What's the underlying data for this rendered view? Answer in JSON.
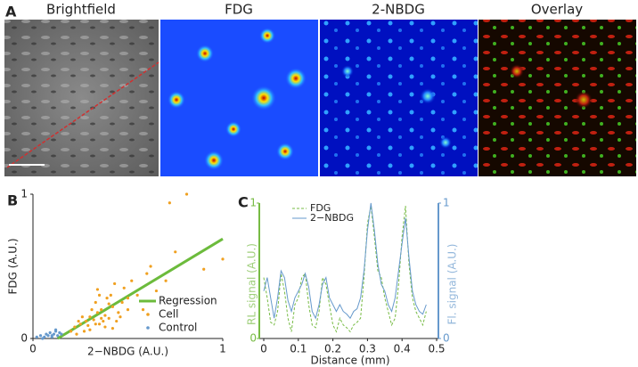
{
  "images": {
    "panel": "A",
    "titles": [
      "Brightfield",
      "FDG",
      "2-NBDG",
      "Overlay"
    ]
  },
  "chart_data": [
    {
      "type": "scatter",
      "panel": "B",
      "x_label": "2−NBDG (A.U.)",
      "y_label": "FDG (A.U.)",
      "xlim": [
        0,
        1
      ],
      "xticks": [
        0,
        1
      ],
      "ylim": [
        0,
        1
      ],
      "yticks": [
        0,
        1
      ],
      "legend": "lower right",
      "series": [
        {
          "name": "Regression",
          "color": "#6cbb3c",
          "marker": "line",
          "x": [
            0.13,
            1
          ],
          "values": [
            0,
            0.69
          ]
        },
        {
          "name": "Cell",
          "color": "#f0a020",
          "marker": "dot",
          "x": [
            0.22,
            0.25,
            0.28,
            0.3,
            0.32,
            0.34,
            0.35,
            0.36,
            0.38,
            0.4,
            0.42,
            0.45,
            0.27,
            0.29,
            0.31,
            0.33,
            0.37,
            0.39,
            0.41,
            0.44,
            0.48,
            0.5,
            0.26,
            0.3,
            0.35,
            0.38,
            0.43,
            0.47,
            0.52,
            0.55,
            0.6,
            0.24,
            0.33,
            0.36,
            0.4,
            0.46,
            0.5,
            0.58,
            0.62,
            0.65,
            0.7,
            0.81,
            0.72,
            0.75,
            0.9,
            1.0,
            0.2,
            0.23,
            0.34,
            0.42
          ],
          "values": [
            0.08,
            0.1,
            0.12,
            0.15,
            0.13,
            0.18,
            0.1,
            0.2,
            0.16,
            0.14,
            0.22,
            0.18,
            0.05,
            0.09,
            0.2,
            0.25,
            0.12,
            0.28,
            0.3,
            0.12,
            0.35,
            0.2,
            0.15,
            0.06,
            0.3,
            0.08,
            0.38,
            0.25,
            0.4,
            0.3,
            0.45,
            0.12,
            0.1,
            0.14,
            0.24,
            0.15,
            0.28,
            0.2,
            0.5,
            0.33,
            0.4,
            1.0,
            0.94,
            0.6,
            0.48,
            0.55,
            0.05,
            0.03,
            0.34,
            0.07
          ]
        },
        {
          "name": "Control",
          "color": "#6699cc",
          "marker": "dot",
          "x": [
            0.02,
            0.04,
            0.06,
            0.07,
            0.08,
            0.09,
            0.1,
            0.11,
            0.12,
            0.13,
            0.14,
            0.15,
            0.05,
            0.1,
            0.12
          ],
          "values": [
            0.01,
            0.02,
            0.01,
            0.03,
            0.02,
            0.04,
            0.02,
            0.03,
            0.05,
            0.02,
            0.04,
            0.03,
            0.0,
            0.01,
            0.06
          ]
        }
      ]
    },
    {
      "type": "line",
      "panel": "C",
      "x_label": "Distance (mm)",
      "y_label": "RL signal (A.U.)",
      "y2_label": "Fl. signal (A.U.)",
      "xlim": [
        0,
        0.5
      ],
      "xticks": [
        0,
        0.1,
        0.2,
        0.3,
        0.4,
        0.5
      ],
      "ylim": [
        0,
        1
      ],
      "yticks": [
        0,
        1
      ],
      "y2lim": [
        0,
        1
      ],
      "y2ticks": [
        0,
        1
      ],
      "legend": "upper center",
      "x": [
        0,
        0.01,
        0.02,
        0.03,
        0.04,
        0.05,
        0.06,
        0.07,
        0.08,
        0.09,
        0.1,
        0.11,
        0.12,
        0.13,
        0.14,
        0.15,
        0.16,
        0.17,
        0.18,
        0.19,
        0.2,
        0.21,
        0.22,
        0.23,
        0.24,
        0.25,
        0.26,
        0.27,
        0.28,
        0.29,
        0.3,
        0.31,
        0.32,
        0.33,
        0.34,
        0.35,
        0.36,
        0.37,
        0.38,
        0.39,
        0.4,
        0.41,
        0.42,
        0.43,
        0.44,
        0.45,
        0.46,
        0.47
      ],
      "series": [
        {
          "name": "FDG",
          "color": "#77bb44",
          "dashed": true,
          "values": [
            0.45,
            0.3,
            0.12,
            0.1,
            0.2,
            0.48,
            0.35,
            0.15,
            0.05,
            0.25,
            0.3,
            0.45,
            0.48,
            0.25,
            0.1,
            0.08,
            0.2,
            0.45,
            0.4,
            0.25,
            0.1,
            0.05,
            0.15,
            0.1,
            0.08,
            0.05,
            0.1,
            0.12,
            0.15,
            0.45,
            0.85,
            0.98,
            0.75,
            0.5,
            0.45,
            0.3,
            0.2,
            0.1,
            0.15,
            0.4,
            0.75,
            0.98,
            0.55,
            0.3,
            0.2,
            0.15,
            0.1,
            0.2
          ]
        },
        {
          "name": "2−NBDG",
          "color": "#6699cc",
          "dashed": false,
          "axis": "y2",
          "values": [
            0.35,
            0.45,
            0.3,
            0.15,
            0.3,
            0.5,
            0.45,
            0.28,
            0.2,
            0.3,
            0.35,
            0.4,
            0.48,
            0.38,
            0.2,
            0.15,
            0.25,
            0.4,
            0.45,
            0.3,
            0.25,
            0.2,
            0.25,
            0.2,
            0.18,
            0.15,
            0.2,
            0.22,
            0.3,
            0.5,
            0.8,
            1.0,
            0.8,
            0.55,
            0.4,
            0.35,
            0.25,
            0.2,
            0.3,
            0.5,
            0.7,
            0.89,
            0.6,
            0.35,
            0.25,
            0.2,
            0.18,
            0.25
          ]
        }
      ]
    }
  ]
}
